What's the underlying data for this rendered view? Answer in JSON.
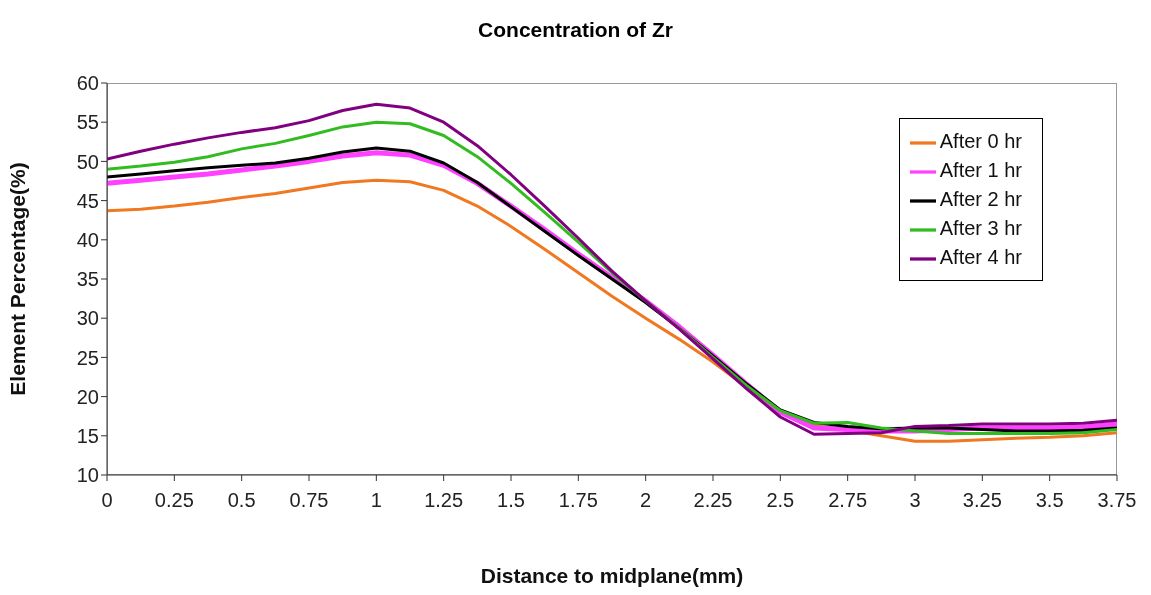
{
  "chart_data": {
    "type": "line",
    "title": "Concentration of Zr",
    "xlabel": "Distance to midplane(mm)",
    "ylabel": "Element Percentage(%)",
    "x": [
      0,
      0.125,
      0.25,
      0.375,
      0.5,
      0.625,
      0.75,
      0.875,
      1,
      1.125,
      1.25,
      1.375,
      1.5,
      1.625,
      1.75,
      1.875,
      2,
      2.125,
      2.25,
      2.375,
      2.5,
      2.625,
      2.75,
      2.875,
      3,
      3.125,
      3.25,
      3.375,
      3.5,
      3.625,
      3.75
    ],
    "xlim": [
      0,
      3.75
    ],
    "xticks": [
      0,
      0.25,
      0.5,
      0.75,
      1,
      1.25,
      1.5,
      1.75,
      2,
      2.25,
      2.5,
      2.75,
      3,
      3.25,
      3.5,
      3.75
    ],
    "ylim": [
      10,
      60
    ],
    "yticks": [
      10,
      15,
      20,
      25,
      30,
      35,
      40,
      45,
      50,
      55,
      60
    ],
    "grid": false,
    "legend": "top right",
    "line_style": "solid",
    "series": [
      {
        "name": "After 0 hr",
        "color": "#f07820",
        "values": [
          43.7,
          43.9,
          44.3,
          44.8,
          45.4,
          45.9,
          46.6,
          47.3,
          47.6,
          47.4,
          46.3,
          44.3,
          41.7,
          38.8,
          35.8,
          32.8,
          30,
          27.3,
          24.4,
          21.2,
          18,
          16.3,
          15.7,
          15,
          14.3,
          14.3,
          14.5,
          14.7,
          14.8,
          15,
          15.4
        ]
      },
      {
        "name": "After 1 hr",
        "color": "#ff40ff",
        "values": [
          47.2,
          47.6,
          48,
          48.4,
          48.9,
          49.4,
          50,
          50.7,
          51.1,
          50.8,
          49.5,
          47.2,
          44.3,
          41.3,
          38.2,
          35.2,
          32.2,
          28.9,
          25.3,
          21.6,
          18,
          16,
          15.8,
          15.6,
          15.6,
          15.8,
          16,
          16,
          16,
          16.1,
          16.5
        ]
      },
      {
        "name": "After 2 hr",
        "color": "#000000",
        "values": [
          48,
          48.4,
          48.8,
          49.2,
          49.5,
          49.8,
          50.4,
          51.2,
          51.7,
          51.3,
          49.8,
          47.3,
          44.2,
          41.1,
          38,
          35,
          32,
          28.7,
          25.2,
          21.6,
          18.3,
          16.7,
          16.2,
          15.9,
          16,
          16,
          15.8,
          15.6,
          15.6,
          15.7,
          16
        ]
      },
      {
        "name": "After 3 hr",
        "color": "#33bb22",
        "values": [
          49,
          49.4,
          49.9,
          50.6,
          51.6,
          52.3,
          53.3,
          54.4,
          55,
          54.8,
          53.3,
          50.6,
          47.2,
          43.5,
          39.7,
          35.8,
          32.2,
          28.7,
          25,
          21.4,
          18.2,
          16.6,
          16.7,
          16,
          15.6,
          15.3,
          15.3,
          15.3,
          15.3,
          15.4,
          15.8
        ]
      },
      {
        "name": "After 4 hr",
        "color": "#800080",
        "values": [
          50.3,
          51.3,
          52.2,
          53,
          53.7,
          54.3,
          55.2,
          56.5,
          57.3,
          56.8,
          55,
          52,
          48.3,
          44.3,
          40.2,
          36,
          32.2,
          28.6,
          24.8,
          21,
          17.4,
          15.2,
          15.3,
          15.4,
          16.2,
          16.3,
          16.5,
          16.5,
          16.5,
          16.6,
          17
        ]
      }
    ]
  }
}
